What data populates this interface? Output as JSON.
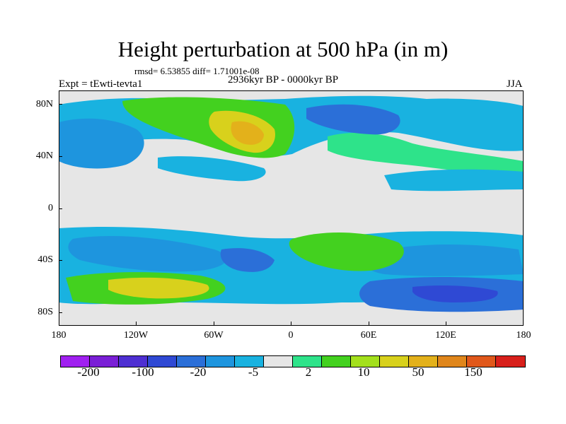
{
  "title": "Height perturbation at 500 hPa (in m)",
  "stats": "rmsd= 6.53855 diff= 1.71001e-08",
  "experiment_label": "Expt = tEwti-tevta1",
  "period_label": "2936kyr BP - 0000kyr BP",
  "season_label": "JJA",
  "latitude_labels": [
    "80N",
    "40N",
    "0",
    "40S",
    "80S"
  ],
  "longitude_labels": [
    "180",
    "120W",
    "60W",
    "0",
    "60E",
    "120E",
    "180"
  ],
  "colorbar": {
    "colors": [
      "#a020f0",
      "#7a1fd6",
      "#4e2fd2",
      "#2f49d4",
      "#2b6fd8",
      "#1e95de",
      "#19b2e0",
      "#e6e6e6",
      "#2ee38a",
      "#43d11f",
      "#a3e01c",
      "#d8d11c",
      "#e3b11b",
      "#e0861b",
      "#e0581b",
      "#d8201b"
    ],
    "labels": [
      "-200",
      "-100",
      "-20",
      "-5",
      "2",
      "10",
      "50",
      "150"
    ]
  }
}
